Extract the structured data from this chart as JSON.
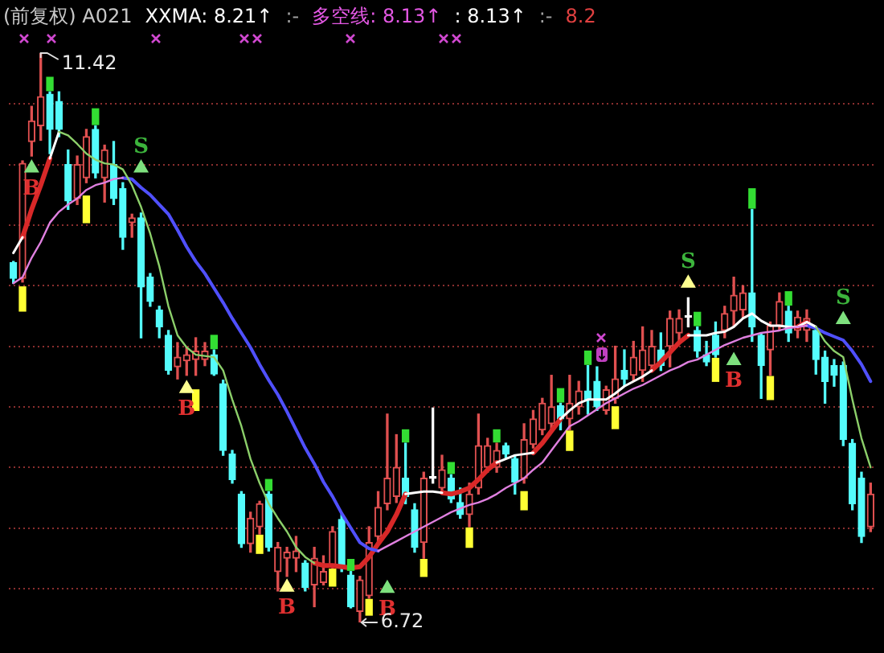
{
  "chart_data": {
    "type": "candlestick",
    "title": "(前复权) A021",
    "categories": [
      null,
      null,
      null,
      null,
      null,
      null,
      null,
      null,
      null,
      null,
      null,
      null,
      null,
      null,
      null,
      null,
      null,
      null,
      null,
      null,
      null,
      null,
      null,
      null,
      null,
      null,
      null,
      null,
      null,
      null,
      null,
      null,
      null,
      null,
      null,
      null,
      null,
      null,
      null,
      null,
      null,
      null,
      null,
      null,
      null,
      null,
      null,
      null,
      null,
      null,
      null,
      null,
      null,
      null,
      null,
      null,
      null,
      null,
      null,
      null,
      null,
      null,
      null,
      null,
      null,
      null,
      null,
      null,
      null,
      null,
      null,
      null,
      null,
      null,
      null,
      null,
      null,
      null,
      null,
      null,
      null,
      null,
      null,
      null,
      null,
      null,
      null,
      null,
      null,
      null,
      null,
      null,
      null,
      null,
      null
    ],
    "ohlc": [
      [
        9.69,
        9.7,
        9.52,
        9.56
      ],
      [
        9.56,
        10.53,
        9.53,
        10.51
      ],
      [
        10.69,
        10.98,
        10.57,
        10.86
      ],
      [
        10.82,
        11.42,
        10.7,
        11.06
      ],
      [
        11.08,
        11.1,
        10.59,
        10.79
      ],
      [
        11.02,
        11.1,
        10.73,
        10.79
      ],
      [
        10.5,
        10.62,
        10.13,
        10.2
      ],
      [
        10.22,
        10.57,
        10.17,
        10.5
      ],
      [
        10.39,
        10.79,
        10.35,
        10.73
      ],
      [
        10.79,
        10.82,
        10.39,
        10.43
      ],
      [
        10.39,
        10.66,
        10.19,
        10.62
      ],
      [
        10.5,
        10.69,
        10.17,
        10.22
      ],
      [
        10.3,
        10.35,
        9.8,
        9.9
      ],
      [
        10.02,
        10.09,
        9.9,
        10.06
      ],
      [
        10.06,
        10.1,
        9.07,
        9.49
      ],
      [
        9.57,
        9.6,
        9.33,
        9.37
      ],
      [
        9.3,
        9.33,
        9.07,
        9.16
      ],
      [
        9.09,
        9.13,
        8.77,
        8.8
      ],
      [
        8.83,
        9.03,
        8.73,
        8.91
      ],
      [
        8.88,
        8.99,
        8.76,
        8.93
      ],
      [
        8.89,
        9.07,
        8.76,
        8.96
      ],
      [
        8.89,
        9.03,
        8.84,
        8.96
      ],
      [
        8.93,
        8.97,
        8.76,
        8.77
      ],
      [
        8.69,
        8.72,
        8.1,
        8.14
      ],
      [
        8.11,
        8.14,
        7.87,
        7.9
      ],
      [
        7.78,
        7.8,
        7.34,
        7.37
      ],
      [
        7.37,
        7.63,
        7.3,
        7.58
      ],
      [
        7.51,
        7.72,
        7.45,
        7.7
      ],
      [
        7.78,
        7.8,
        7.31,
        7.34
      ],
      [
        7.14,
        7.38,
        6.98,
        7.34
      ],
      [
        7.25,
        7.34,
        7.1,
        7.3
      ],
      [
        7.25,
        7.43,
        7.14,
        7.31
      ],
      [
        7.21,
        7.23,
        6.98,
        7.01
      ],
      [
        7.03,
        7.34,
        6.85,
        7.25
      ],
      [
        7.05,
        7.27,
        7.03,
        7.14
      ],
      [
        7.18,
        7.51,
        7.17,
        7.47
      ],
      [
        7.57,
        7.61,
        7.14,
        7.17
      ],
      [
        7.11,
        7.14,
        6.84,
        6.85
      ],
      [
        6.81,
        7.1,
        6.72,
        7.07
      ],
      [
        6.94,
        7.51,
        6.92,
        7.38
      ],
      [
        7.43,
        7.8,
        7.38,
        7.67
      ],
      [
        7.7,
        8.44,
        7.65,
        7.91
      ],
      [
        7.76,
        8.27,
        7.71,
        8.0
      ],
      [
        7.91,
        8.2,
        7.7,
        7.76
      ],
      [
        7.65,
        7.7,
        7.3,
        7.34
      ],
      [
        7.38,
        7.96,
        7.25,
        7.91
      ],
      [
        7.91,
        8.49,
        7.87,
        7.91
      ],
      [
        7.83,
        8.1,
        7.78,
        7.98
      ],
      [
        7.91,
        7.94,
        7.71,
        7.74
      ],
      [
        7.71,
        7.83,
        7.58,
        7.61
      ],
      [
        7.61,
        7.87,
        7.51,
        7.78
      ],
      [
        7.83,
        8.44,
        7.78,
        8.18
      ],
      [
        8.0,
        8.24,
        7.96,
        8.18
      ],
      [
        8.0,
        8.2,
        7.96,
        8.14
      ],
      [
        8.18,
        8.2,
        8.08,
        8.11
      ],
      [
        8.07,
        8.1,
        7.78,
        7.88
      ],
      [
        7.91,
        8.36,
        7.87,
        8.23
      ],
      [
        8.19,
        8.47,
        8.16,
        8.4
      ],
      [
        8.31,
        8.57,
        8.27,
        8.53
      ],
      [
        8.36,
        8.76,
        8.31,
        8.5
      ],
      [
        8.51,
        8.53,
        8.31,
        8.4
      ],
      [
        8.4,
        8.76,
        8.31,
        8.53
      ],
      [
        8.5,
        8.71,
        8.44,
        8.63
      ],
      [
        8.63,
        8.84,
        8.44,
        8.56
      ],
      [
        8.71,
        8.83,
        8.47,
        8.5
      ],
      [
        8.47,
        8.67,
        8.44,
        8.64
      ],
      [
        8.57,
        9.0,
        8.53,
        8.73
      ],
      [
        8.8,
        8.97,
        8.67,
        8.73
      ],
      [
        8.76,
        9.04,
        8.71,
        8.91
      ],
      [
        8.8,
        9.16,
        8.71,
        8.97
      ],
      [
        8.84,
        9.13,
        8.8,
        9.0
      ],
      [
        8.97,
        9.11,
        8.8,
        8.84
      ],
      [
        9.0,
        9.29,
        8.83,
        9.23
      ],
      [
        9.11,
        9.3,
        9.04,
        9.23
      ],
      [
        9.24,
        9.4,
        9.16,
        9.24
      ],
      [
        9.13,
        9.16,
        8.91,
        8.96
      ],
      [
        8.93,
        9.04,
        8.84,
        8.87
      ],
      [
        9.09,
        9.2,
        8.91,
        8.93
      ],
      [
        9.13,
        9.33,
        9.07,
        9.27
      ],
      [
        9.29,
        9.57,
        9.16,
        9.42
      ],
      [
        9.3,
        9.5,
        9.24,
        9.44
      ],
      [
        9.44,
        10.13,
        9.04,
        9.16
      ],
      [
        9.09,
        9.11,
        8.57,
        8.84
      ],
      [
        8.97,
        9.2,
        8.76,
        9.17
      ],
      [
        9.17,
        9.44,
        9.13,
        9.37
      ],
      [
        9.29,
        9.33,
        9.04,
        9.11
      ],
      [
        9.13,
        9.29,
        9.07,
        9.24
      ],
      [
        9.13,
        9.3,
        9.04,
        9.23
      ],
      [
        9.13,
        9.16,
        8.77,
        8.89
      ],
      [
        8.91,
        8.96,
        8.53,
        8.71
      ],
      [
        8.84,
        8.89,
        8.67,
        8.76
      ],
      [
        8.84,
        8.87,
        8.18,
        8.23
      ],
      [
        8.2,
        8.23,
        7.65,
        7.7
      ],
      [
        7.91,
        7.96,
        7.38,
        7.43
      ],
      [
        7.51,
        7.87,
        7.47,
        7.78
      ]
    ],
    "colors": [
      "#54fcfc",
      "#e05050",
      "#e05050",
      "#e05050",
      "#54fcfc",
      "#54fcfc",
      "#54fcfc",
      "#e05050",
      "#e05050",
      "#54fcfc",
      "#e05050",
      "#54fcfc",
      "#54fcfc",
      "#e05050",
      "#54fcfc",
      "#54fcfc",
      "#54fcfc",
      "#54fcfc",
      "#e05050",
      "#e05050",
      "#e05050",
      "#e05050",
      "#54fcfc",
      "#54fcfc",
      "#54fcfc",
      "#54fcfc",
      "#e05050",
      "#e05050",
      "#54fcfc",
      "#e05050",
      "#e05050",
      "#e05050",
      "#54fcfc",
      "#e05050",
      "#e05050",
      "#e05050",
      "#54fcfc",
      "#54fcfc",
      "#e05050",
      "#e05050",
      "#e05050",
      "#e05050",
      "#e05050",
      "#54fcfc",
      "#54fcfc",
      "#e05050",
      "#ffffff",
      "#e05050",
      "#54fcfc",
      "#54fcfc",
      "#e05050",
      "#e05050",
      "#e05050",
      "#e05050",
      "#54fcfc",
      "#54fcfc",
      "#e05050",
      "#e05050",
      "#e05050",
      "#e05050",
      "#54fcfc",
      "#e05050",
      "#e05050",
      "#54fcfc",
      "#54fcfc",
      "#e05050",
      "#e05050",
      "#54fcfc",
      "#e05050",
      "#e05050",
      "#e05050",
      "#54fcfc",
      "#e05050",
      "#e05050",
      "#ffffff",
      "#54fcfc",
      "#54fcfc",
      "#54fcfc",
      "#e05050",
      "#e05050",
      "#e05050",
      "#54fcfc",
      "#54fcfc",
      "#e05050",
      "#e05050",
      "#54fcfc",
      "#e05050",
      "#e05050",
      "#54fcfc",
      "#54fcfc",
      "#54fcfc",
      "#54fcfc",
      "#54fcfc",
      "#54fcfc",
      "#e05050"
    ],
    "series": [
      {
        "type": "line",
        "color": "#d82828",
        "values": [
          null,
          9.9,
          10.13,
          10.33,
          10.55,
          null,
          null,
          null,
          null,
          null,
          null,
          null,
          null,
          null,
          null,
          null,
          null,
          null,
          null,
          null,
          null,
          null,
          null,
          null,
          null,
          null,
          null,
          null,
          null,
          null,
          null,
          null,
          null,
          7.21,
          7.19,
          7.19,
          7.18,
          7.17,
          7.18,
          7.26,
          7.37,
          7.47,
          7.61,
          7.78,
          null,
          null,
          null,
          7.79,
          7.78,
          7.8,
          7.83,
          7.9,
          7.98,
          8.04,
          null,
          null,
          null,
          8.12,
          8.2,
          8.3,
          8.4,
          null,
          null,
          null,
          null,
          null,
          null,
          null,
          null,
          null,
          8.8,
          8.87,
          8.95,
          9.03,
          9.09,
          null,
          null,
          null,
          null,
          null,
          null,
          null,
          null,
          null,
          null,
          null,
          9.16,
          9.2,
          null,
          null,
          null,
          null,
          null,
          null,
          null
        ]
      },
      {
        "type": "line",
        "color": "#ffffff",
        "values": [
          9.77,
          9.9,
          null,
          null,
          10.55,
          10.77,
          null,
          null,
          null,
          null,
          null,
          null,
          null,
          null,
          null,
          null,
          null,
          null,
          null,
          null,
          null,
          null,
          null,
          null,
          null,
          null,
          null,
          null,
          null,
          null,
          null,
          null,
          null,
          null,
          null,
          null,
          null,
          null,
          null,
          null,
          null,
          null,
          null,
          7.78,
          7.79,
          7.8,
          7.8,
          7.79,
          null,
          null,
          null,
          null,
          null,
          8.04,
          8.07,
          8.1,
          8.11,
          8.12,
          null,
          null,
          8.4,
          8.47,
          8.53,
          8.56,
          8.56,
          8.56,
          8.61,
          8.67,
          8.71,
          8.75,
          8.8,
          null,
          null,
          null,
          9.09,
          9.09,
          9.09,
          9.11,
          9.12,
          9.16,
          9.23,
          9.27,
          9.21,
          9.17,
          9.17,
          9.16,
          9.16,
          9.2,
          9.16,
          null,
          null,
          null,
          null,
          null,
          null
        ]
      },
      {
        "type": "line",
        "color": "#8ccf6a",
        "values": [
          null,
          null,
          null,
          null,
          null,
          10.77,
          10.74,
          10.67,
          10.59,
          10.54,
          10.51,
          10.5,
          10.46,
          10.33,
          10.15,
          9.93,
          9.66,
          9.33,
          9.09,
          8.99,
          8.93,
          8.92,
          8.91,
          8.8,
          8.56,
          8.34,
          8.07,
          7.87,
          7.7,
          7.58,
          7.47,
          7.34,
          7.26,
          7.21,
          null,
          null,
          null,
          null,
          null,
          null,
          null,
          null,
          null,
          null,
          null,
          null,
          null,
          null,
          null,
          null,
          null,
          null,
          null,
          null,
          null,
          null,
          null,
          null,
          null,
          null,
          null,
          null,
          null,
          null,
          null,
          null,
          null,
          null,
          null,
          null,
          null,
          null,
          null,
          null,
          null,
          null,
          null,
          null,
          null,
          null,
          null,
          null,
          null,
          null,
          null,
          null,
          null,
          null,
          9.16,
          9.04,
          8.96,
          8.91,
          8.56,
          8.24,
          8.0
        ]
      },
      {
        "type": "line",
        "color": "#e080e0",
        "values": [
          9.52,
          9.57,
          9.73,
          9.86,
          10.02,
          10.11,
          10.17,
          10.22,
          10.29,
          10.33,
          10.35,
          10.38,
          10.39,
          null,
          null,
          null,
          null,
          null,
          null,
          null,
          null,
          null,
          null,
          null,
          null,
          null,
          null,
          null,
          null,
          null,
          null,
          null,
          null,
          null,
          null,
          null,
          null,
          null,
          null,
          null,
          7.31,
          7.35,
          7.39,
          7.43,
          7.47,
          7.51,
          7.55,
          7.59,
          7.63,
          7.66,
          7.69,
          7.71,
          7.74,
          7.78,
          7.83,
          7.87,
          7.91,
          7.98,
          8.04,
          8.14,
          8.24,
          8.34,
          8.38,
          8.43,
          8.48,
          8.53,
          8.57,
          8.61,
          8.65,
          8.68,
          8.72,
          8.76,
          8.8,
          8.83,
          8.87,
          8.89,
          8.93,
          8.97,
          9.01,
          9.04,
          9.07,
          9.09,
          9.11,
          9.12,
          9.13,
          9.15,
          9.16,
          9.17,
          null,
          null,
          null,
          null,
          null,
          null,
          null
        ]
      },
      {
        "type": "line",
        "color": "#5050ff",
        "values": [
          null,
          null,
          null,
          null,
          null,
          null,
          null,
          null,
          null,
          null,
          null,
          null,
          10.39,
          10.38,
          10.31,
          10.25,
          10.17,
          10.09,
          9.96,
          9.82,
          9.7,
          9.6,
          9.48,
          9.36,
          9.23,
          9.11,
          8.99,
          8.85,
          8.72,
          8.6,
          8.46,
          8.31,
          8.16,
          8.03,
          7.88,
          7.76,
          7.62,
          7.5,
          7.38,
          7.33,
          7.31,
          null,
          null,
          null,
          null,
          null,
          null,
          null,
          null,
          null,
          null,
          null,
          null,
          null,
          null,
          null,
          null,
          null,
          null,
          null,
          null,
          null,
          null,
          null,
          null,
          null,
          null,
          null,
          null,
          null,
          null,
          null,
          null,
          null,
          null,
          null,
          null,
          null,
          null,
          null,
          null,
          null,
          null,
          null,
          null,
          null,
          null,
          9.17,
          9.15,
          9.11,
          9.08,
          9.05,
          8.96,
          8.85,
          8.71
        ]
      },
      {
        "type": "bar",
        "color": "#33dd33",
        "base": [
          null,
          null,
          null,
          null,
          11.11,
          null,
          null,
          null,
          null,
          10.83,
          null,
          null,
          null,
          null,
          null,
          null,
          null,
          null,
          null,
          null,
          null,
          null,
          8.98,
          null,
          null,
          null,
          null,
          null,
          7.81,
          null,
          null,
          null,
          null,
          null,
          null,
          null,
          null,
          7.15,
          null,
          null,
          null,
          null,
          null,
          8.21,
          null,
          null,
          null,
          null,
          7.95,
          null,
          null,
          null,
          null,
          8.21,
          null,
          null,
          null,
          null,
          null,
          null,
          8.54,
          null,
          null,
          8.85,
          null,
          null,
          null,
          null,
          null,
          null,
          null,
          null,
          null,
          null,
          null,
          9.17,
          null,
          null,
          null,
          null,
          null,
          10.14,
          null,
          null,
          null,
          9.34,
          null,
          null,
          null,
          null,
          null,
          null,
          null,
          null,
          null
        ],
        "values": [
          null,
          null,
          null,
          null,
          0.11,
          null,
          null,
          null,
          null,
          0.13,
          null,
          null,
          null,
          null,
          null,
          null,
          null,
          null,
          null,
          null,
          null,
          null,
          0.11,
          null,
          null,
          null,
          null,
          null,
          0.09,
          null,
          null,
          null,
          null,
          null,
          null,
          null,
          null,
          0.09,
          null,
          null,
          null,
          null,
          null,
          0.1,
          null,
          null,
          null,
          null,
          0.09,
          null,
          null,
          null,
          null,
          0.1,
          null,
          null,
          null,
          null,
          null,
          null,
          0.11,
          null,
          null,
          0.11,
          null,
          null,
          null,
          null,
          null,
          null,
          null,
          null,
          null,
          null,
          null,
          0.11,
          null,
          null,
          null,
          null,
          null,
          0.16,
          null,
          null,
          null,
          0.11,
          null,
          null,
          null,
          null,
          null,
          null,
          null,
          null,
          null
        ]
      },
      {
        "type": "bar",
        "color": "#ffff33",
        "base": [
          null,
          9.29,
          null,
          null,
          null,
          null,
          null,
          null,
          10.02,
          null,
          null,
          null,
          null,
          null,
          null,
          null,
          null,
          null,
          null,
          null,
          8.47,
          null,
          null,
          null,
          null,
          null,
          null,
          7.29,
          null,
          null,
          null,
          null,
          null,
          null,
          null,
          7.02,
          null,
          null,
          null,
          6.78,
          null,
          null,
          null,
          null,
          null,
          7.1,
          null,
          null,
          null,
          null,
          7.34,
          null,
          null,
          null,
          null,
          null,
          7.65,
          null,
          null,
          null,
          null,
          8.14,
          null,
          null,
          null,
          null,
          8.32,
          null,
          null,
          null,
          null,
          null,
          null,
          null,
          null,
          null,
          null,
          8.71,
          null,
          null,
          null,
          null,
          null,
          8.56,
          null,
          null,
          null,
          null,
          null,
          null,
          null,
          null,
          null,
          null,
          null
        ],
        "values": [
          null,
          0.2,
          null,
          null,
          null,
          null,
          null,
          null,
          0.22,
          null,
          null,
          null,
          null,
          null,
          null,
          null,
          null,
          null,
          null,
          null,
          0.17,
          null,
          null,
          null,
          null,
          null,
          null,
          0.15,
          null,
          null,
          null,
          null,
          null,
          null,
          null,
          0.14,
          null,
          null,
          null,
          0.13,
          null,
          null,
          null,
          null,
          null,
          0.14,
          null,
          null,
          null,
          null,
          0.16,
          null,
          null,
          null,
          null,
          null,
          0.15,
          null,
          null,
          null,
          null,
          0.16,
          null,
          null,
          null,
          null,
          0.18,
          null,
          null,
          null,
          null,
          null,
          null,
          null,
          null,
          null,
          null,
          0.19,
          null,
          null,
          null,
          null,
          null,
          0.19,
          null,
          null,
          null,
          null,
          null,
          null,
          null,
          null,
          null,
          null,
          null
        ]
      },
      {
        "type": "scatter",
        "color": "#e03030",
        "marker": "triangle",
        "values": [
          null,
          null,
          10.47,
          null,
          null,
          null,
          null,
          null,
          null,
          null,
          null,
          null,
          null,
          null,
          null,
          null,
          null,
          null,
          null,
          8.65,
          null,
          null,
          null,
          null,
          null,
          null,
          null,
          null,
          null,
          null,
          7.01,
          null,
          null,
          null,
          null,
          null,
          null,
          null,
          null,
          null,
          null,
          7.0,
          null,
          null,
          null,
          null,
          null,
          null,
          null,
          null,
          null,
          null,
          null,
          null,
          null,
          null,
          null,
          null,
          null,
          null,
          null,
          null,
          null,
          null,
          null,
          null,
          null,
          null,
          null,
          null,
          null,
          null,
          null,
          null,
          null,
          null,
          null,
          null,
          null,
          8.88,
          null,
          null,
          null,
          null,
          null,
          null,
          null,
          null,
          null,
          null,
          null,
          null,
          null,
          null,
          null
        ],
        "colors": [
          null,
          null,
          "#7ee07e",
          null,
          null,
          null,
          null,
          null,
          null,
          null,
          null,
          null,
          null,
          null,
          null,
          null,
          null,
          null,
          null,
          "#ffff90",
          null,
          null,
          null,
          null,
          null,
          null,
          null,
          null,
          null,
          null,
          "#ffff90",
          null,
          null,
          null,
          null,
          null,
          null,
          null,
          null,
          null,
          null,
          "#7ee07e",
          null,
          null,
          null,
          null,
          null,
          null,
          null,
          null,
          null,
          null,
          null,
          null,
          null,
          null,
          null,
          null,
          null,
          null,
          null,
          null,
          null,
          null,
          null,
          null,
          null,
          null,
          null,
          null,
          null,
          null,
          null,
          null,
          null,
          null,
          null,
          null,
          null,
          "#7ee07e",
          null,
          null,
          null,
          null,
          null,
          null,
          null,
          null,
          null,
          null,
          null,
          null,
          null,
          null,
          null
        ],
        "value_labels": [
          null,
          null,
          "B",
          null,
          null,
          null,
          null,
          null,
          null,
          null,
          null,
          null,
          null,
          null,
          null,
          null,
          null,
          null,
          null,
          "B",
          null,
          null,
          null,
          null,
          null,
          null,
          null,
          null,
          null,
          null,
          "B",
          null,
          null,
          null,
          null,
          null,
          null,
          null,
          null,
          null,
          null,
          "B",
          null,
          null,
          null,
          null,
          null,
          null,
          null,
          null,
          null,
          null,
          null,
          null,
          null,
          null,
          null,
          null,
          null,
          null,
          null,
          null,
          null,
          null,
          null,
          null,
          null,
          null,
          null,
          null,
          null,
          null,
          null,
          null,
          null,
          null,
          null,
          null,
          null,
          "B",
          null,
          null,
          null,
          null,
          null,
          null,
          null,
          null,
          null,
          null,
          null,
          null,
          null,
          null,
          null
        ]
      },
      {
        "type": "scatter",
        "color": "#3cb43c",
        "marker": "triangle",
        "values": [
          null,
          null,
          null,
          null,
          null,
          null,
          null,
          null,
          null,
          null,
          null,
          null,
          null,
          null,
          10.47,
          null,
          null,
          null,
          null,
          null,
          null,
          null,
          null,
          null,
          null,
          null,
          null,
          null,
          null,
          null,
          null,
          null,
          null,
          null,
          null,
          null,
          null,
          null,
          null,
          null,
          null,
          null,
          null,
          null,
          null,
          null,
          null,
          null,
          null,
          null,
          null,
          null,
          null,
          null,
          null,
          null,
          null,
          null,
          null,
          null,
          null,
          null,
          null,
          null,
          null,
          null,
          null,
          null,
          null,
          null,
          null,
          null,
          null,
          null,
          9.52,
          null,
          null,
          null,
          null,
          null,
          null,
          null,
          null,
          null,
          null,
          null,
          null,
          null,
          null,
          null,
          null,
          9.22,
          null,
          null,
          null
        ],
        "colors": [
          null,
          null,
          null,
          null,
          null,
          null,
          null,
          null,
          null,
          null,
          null,
          null,
          null,
          null,
          "#7ee07e",
          null,
          null,
          null,
          null,
          null,
          null,
          null,
          null,
          null,
          null,
          null,
          null,
          null,
          null,
          null,
          null,
          null,
          null,
          null,
          null,
          null,
          null,
          null,
          null,
          null,
          null,
          null,
          null,
          null,
          null,
          null,
          null,
          null,
          null,
          null,
          null,
          null,
          null,
          null,
          null,
          null,
          null,
          null,
          null,
          null,
          null,
          null,
          null,
          null,
          null,
          null,
          null,
          null,
          null,
          null,
          null,
          null,
          null,
          null,
          "#ffff90",
          null,
          null,
          null,
          null,
          null,
          null,
          null,
          null,
          null,
          null,
          null,
          null,
          null,
          null,
          null,
          null,
          "#7ee07e",
          null,
          null,
          null
        ],
        "value_labels": [
          null,
          null,
          null,
          null,
          null,
          null,
          null,
          null,
          null,
          null,
          null,
          null,
          null,
          null,
          "S",
          null,
          null,
          null,
          null,
          null,
          null,
          null,
          null,
          null,
          null,
          null,
          null,
          null,
          null,
          null,
          null,
          null,
          null,
          null,
          null,
          null,
          null,
          null,
          null,
          null,
          null,
          null,
          null,
          null,
          null,
          null,
          null,
          null,
          null,
          null,
          null,
          null,
          null,
          null,
          null,
          null,
          null,
          null,
          null,
          null,
          null,
          null,
          null,
          null,
          null,
          null,
          null,
          null,
          null,
          null,
          null,
          null,
          null,
          null,
          "S",
          null,
          null,
          null,
          null,
          null,
          null,
          null,
          null,
          null,
          null,
          null,
          null,
          null,
          null,
          null,
          null,
          "S",
          null,
          null,
          null
        ]
      }
    ],
    "annotations": [
      "XXMA: 8.21↑",
      ":-",
      "多空线: 8.13↑",
      ": 8.13↑",
      ":-",
      "8.2",
      "11.42",
      "6.72"
    ],
    "yticks": [
      {
        "value": 7,
        "label": null
      },
      {
        "value": 7.5,
        "label": null
      },
      {
        "value": 8,
        "label": null
      },
      {
        "value": 8.5,
        "label": null
      },
      {
        "value": 9,
        "label": null
      },
      {
        "value": 9.5,
        "label": null
      },
      {
        "value": 10,
        "label": null
      },
      {
        "value": 10.5,
        "label": null
      },
      {
        "value": 11,
        "label": null
      }
    ],
    "grid": "y",
    "tick_labels": false
  }
}
